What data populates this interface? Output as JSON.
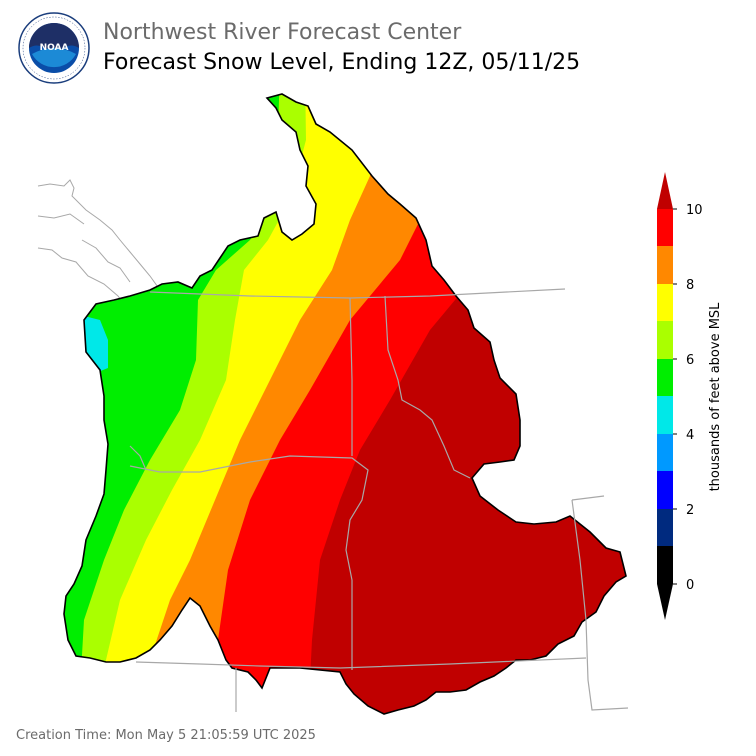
{
  "header": {
    "agency_title": "Northwest River Forecast Center",
    "product_title": "Forecast Snow Level, Ending 12Z, 05/11/25"
  },
  "logo": {
    "text": "NOAA",
    "ring_text": "NATIONAL OCEANIC AND ATMOSPHERIC ADMINISTRATION · U.S. DEPARTMENT OF COMMERCE",
    "icon": "noaa-logo-icon"
  },
  "legend": {
    "title": "thousands of feet above MSL",
    "ticks": [
      "0",
      "2",
      "4",
      "6",
      "8",
      "10"
    ],
    "bands": [
      {
        "range": "below 0",
        "color": "#000000"
      },
      {
        "range": "0-1",
        "color": "#000000"
      },
      {
        "range": "1-2",
        "color": "#002a7f"
      },
      {
        "range": "2-3",
        "color": "#0000ff"
      },
      {
        "range": "3-4",
        "color": "#0099ff"
      },
      {
        "range": "4-5",
        "color": "#00e8e8"
      },
      {
        "range": "5-6",
        "color": "#00ee00"
      },
      {
        "range": "6-7",
        "color": "#aaff00"
      },
      {
        "range": "7-8",
        "color": "#ffff00"
      },
      {
        "range": "8-9",
        "color": "#ff8800"
      },
      {
        "range": "9-10",
        "color": "#ff0000"
      },
      {
        "range": "above 10",
        "color": "#c00000"
      }
    ]
  },
  "footer": {
    "creation_time": "Creation Time: Mon May  5 21:05:59 UTC 2025"
  }
}
